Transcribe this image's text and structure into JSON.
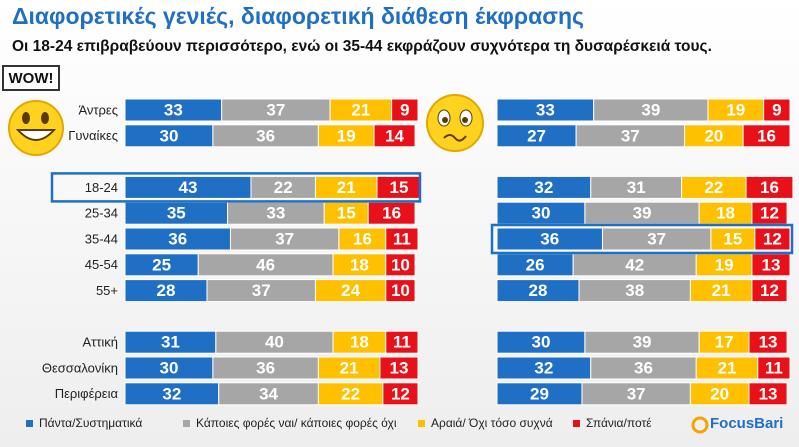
{
  "chart_data": [
    {
      "type": "stacked-bar",
      "title": "Διαφορετικές γενιές, διαφορετική διάθεση έκφρασης",
      "subtitle": "Οι 18-24 επιβραβεύουν περισσότερο, ενώ οι 35-44 εκφράζουν συχνότερα τη δυσαρέσκειά τους.",
      "categories": [
        "Άντρες",
        "Γυναίκες",
        null,
        "18-24",
        "25-34",
        "35-44",
        "45-54",
        "55+",
        null,
        "Αττική",
        "Θεσσαλονίκη",
        "Περιφέρεια"
      ],
      "xlim": [
        0,
        100
      ],
      "highlight_index": 3,
      "legend": "bottom",
      "series": [
        {
          "name": "Πάντα/Συστηματικά",
          "color": "#1f6fc5",
          "values": [
            33,
            30,
            null,
            43,
            35,
            36,
            25,
            28,
            null,
            31,
            30,
            32
          ]
        },
        {
          "name": "Κάποιες φορές ναι/ κάποιες φορές όχι",
          "color": "#a6a6a6",
          "values": [
            37,
            36,
            null,
            22,
            33,
            37,
            46,
            37,
            null,
            40,
            36,
            34
          ]
        },
        {
          "name": "Αραιά/ Όχι τόσο συχνά",
          "color": "#ffc000",
          "values": [
            21,
            19,
            null,
            21,
            15,
            16,
            18,
            24,
            null,
            18,
            21,
            22
          ]
        },
        {
          "name": "Σπάνια/ποτέ",
          "color": "#e8111a",
          "values": [
            9,
            14,
            null,
            15,
            16,
            11,
            10,
            10,
            null,
            11,
            13,
            12
          ]
        }
      ]
    },
    {
      "type": "stacked-bar",
      "xlim": [
        0,
        100
      ],
      "highlight_index": 5,
      "series": [
        {
          "color": "#1f6fc5",
          "values": [
            33,
            27,
            null,
            32,
            30,
            36,
            26,
            28,
            null,
            30,
            32,
            29
          ]
        },
        {
          "color": "#a6a6a6",
          "values": [
            39,
            37,
            null,
            31,
            39,
            37,
            42,
            38,
            null,
            39,
            36,
            37
          ]
        },
        {
          "color": "#ffc000",
          "values": [
            19,
            20,
            null,
            22,
            18,
            15,
            19,
            21,
            null,
            17,
            21,
            20
          ]
        },
        {
          "color": "#e8111a",
          "values": [
            9,
            16,
            null,
            16,
            12,
            12,
            13,
            12,
            null,
            13,
            11,
            13
          ]
        }
      ]
    }
  ],
  "badge": "WOW!",
  "logo": "FocusBari"
}
